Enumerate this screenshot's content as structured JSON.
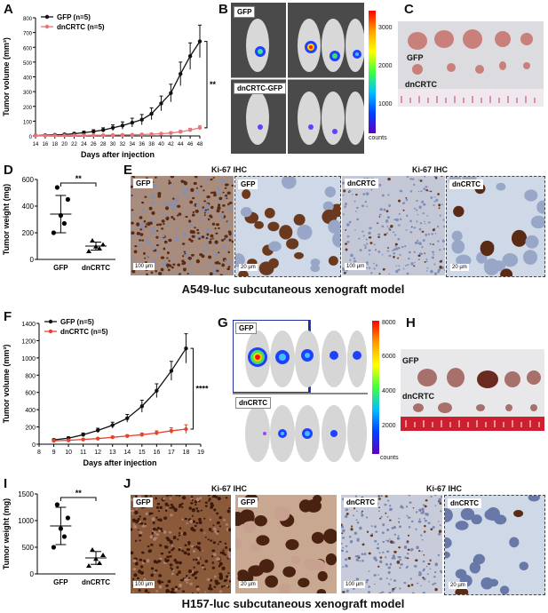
{
  "panels": {
    "A": "A",
    "B": "B",
    "C": "C",
    "D": "D",
    "E": "E",
    "F": "F",
    "G": "G",
    "H": "H",
    "I": "I",
    "J": "J"
  },
  "models": {
    "top": "A549-luc subcutaneous xenograft model",
    "bottom": "H157-luc subcutaneous xenograft model"
  },
  "lum": {
    "b_top_tag": "GFP",
    "b_bottom_tag": "dnCRTC-GFP",
    "b_ticks": [
      "3000",
      "2000",
      "1000"
    ],
    "b_unit": "counts",
    "g_top_tag": "GFP",
    "g_bottom_tag": "dnCRTC",
    "g_ticks": [
      "8000",
      "6000",
      "4000",
      "2000"
    ],
    "g_unit": "counts"
  },
  "tumors": {
    "c_gfp": "GFP",
    "c_dn": "dnCRTC",
    "h_gfp": "GFP",
    "h_dn": "dnCRTC"
  },
  "ihc": {
    "e_head_left": "Ki-67 IHC",
    "e_head_right": "Ki-67 IHC",
    "e1": "GFP",
    "e2": "GFP",
    "e3": "dnCRTC",
    "e4": "dnCRTC",
    "e1s": "100 µm",
    "e2s": "20 µm",
    "e3s": "100 µm",
    "e4s": "20 µm",
    "j_head_left": "Ki-67 IHC",
    "j_head_right": "Ki-67 IHC",
    "j1": "GFP",
    "j2": "GFP",
    "j3": "dnCRTC",
    "j4": "dnCRTC",
    "j1s": "100 µm",
    "j2s": "20 µm",
    "j3s": "100 µm",
    "j4s": "20 µm"
  },
  "colors": {
    "gfp": "#111111",
    "dn_a": "#e8747a",
    "dn_f": "#e8412c",
    "ihc_bg": "#cfd8e6",
    "ihc_brown": "#6b3a1e"
  },
  "chart_data": [
    {
      "id": "A",
      "type": "line",
      "xlabel": "Days after injection",
      "ylabel": "Tumor volume (mm³)",
      "x": [
        14,
        16,
        18,
        20,
        22,
        24,
        26,
        28,
        30,
        32,
        34,
        36,
        38,
        40,
        42,
        44,
        46,
        48
      ],
      "ylim": [
        0,
        800
      ],
      "yticks": [
        0,
        100,
        200,
        300,
        400,
        500,
        600,
        700,
        800
      ],
      "significance": "**",
      "series": [
        {
          "name": "GFP (n=5)",
          "values": [
            3,
            5,
            7,
            10,
            15,
            22,
            30,
            40,
            55,
            70,
            90,
            110,
            150,
            220,
            290,
            420,
            540,
            640
          ],
          "err": [
            2,
            3,
            4,
            5,
            7,
            10,
            12,
            15,
            20,
            25,
            30,
            35,
            40,
            50,
            60,
            80,
            90,
            110
          ]
        },
        {
          "name": "dnCRTC (n=5)",
          "values": [
            2,
            2,
            3,
            3,
            4,
            4,
            5,
            5,
            6,
            7,
            8,
            10,
            12,
            15,
            20,
            28,
            40,
            55
          ],
          "err": [
            1,
            1,
            1,
            1,
            1,
            2,
            2,
            2,
            2,
            3,
            3,
            4,
            5,
            6,
            8,
            10,
            12,
            15
          ]
        }
      ]
    },
    {
      "id": "D",
      "type": "scatter",
      "ylabel": "Tumor weight (mg)",
      "categories": [
        "GFP",
        "dnCRTC"
      ],
      "ylim": [
        0,
        600
      ],
      "yticks": [
        0,
        200,
        400,
        600
      ],
      "significance": "**",
      "points": [
        [
          540,
          450,
          330,
          270,
          200
        ],
        [
          140,
          110,
          95,
          80,
          60
        ]
      ],
      "mean": [
        340,
        100
      ],
      "sd": [
        140,
        30
      ]
    },
    {
      "id": "F",
      "type": "line",
      "xlabel": "Days after injection",
      "ylabel": "Tumor volume (mm³)",
      "x": [
        9,
        10,
        11,
        12,
        13,
        14,
        15,
        16,
        17,
        18
      ],
      "xticks": [
        8,
        9,
        10,
        11,
        12,
        13,
        14,
        15,
        16,
        17,
        18,
        19
      ],
      "ylim": [
        0,
        1400
      ],
      "yticks": [
        0,
        200,
        400,
        600,
        800,
        1000,
        1200,
        1400
      ],
      "significance": "****",
      "series": [
        {
          "name": "GFP (n=5)",
          "values": [
            50,
            70,
            110,
            160,
            220,
            300,
            440,
            620,
            850,
            1110
          ],
          "err": [
            10,
            15,
            20,
            25,
            35,
            45,
            70,
            80,
            110,
            170
          ]
        },
        {
          "name": "dnCRTC (n=5)",
          "values": [
            40,
            45,
            55,
            65,
            80,
            95,
            110,
            130,
            155,
            175
          ],
          "err": [
            8,
            8,
            10,
            10,
            12,
            15,
            20,
            25,
            35,
            50
          ]
        }
      ]
    },
    {
      "id": "I",
      "type": "scatter",
      "ylabel": "Tumor weight (mg)",
      "categories": [
        "GFP",
        "dnCRTC"
      ],
      "ylim": [
        0,
        1500
      ],
      "yticks": [
        0,
        500,
        1000,
        1500
      ],
      "significance": "**",
      "points": [
        [
          1300,
          1050,
          850,
          700,
          500
        ],
        [
          450,
          350,
          280,
          200,
          150
        ]
      ],
      "mean": [
        900,
        300
      ],
      "sd": [
        350,
        120
      ]
    }
  ]
}
